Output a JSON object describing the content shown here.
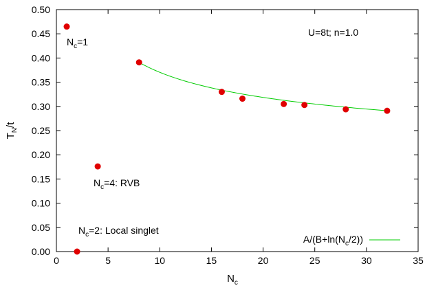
{
  "chart_data": {
    "type": "scatter",
    "title": "",
    "xlabel": "N",
    "xlabel_sub": "c",
    "ylabel": "T",
    "ylabel_sub": "N",
    "ylabel_suffix": "/t",
    "xlim": [
      0,
      35
    ],
    "ylim": [
      0.0,
      0.5
    ],
    "xticks": [
      0,
      5,
      10,
      15,
      20,
      25,
      30,
      35
    ],
    "yticks": [
      "0.00",
      "0.05",
      "0.10",
      "0.15",
      "0.20",
      "0.25",
      "0.30",
      "0.35",
      "0.40",
      "0.45",
      "0.50"
    ],
    "grid": false,
    "series": [
      {
        "kind": "points",
        "color": "#e00000",
        "x": [
          1,
          2,
          4,
          8,
          16,
          18,
          22,
          24,
          28,
          32
        ],
        "y": [
          0.465,
          0.0,
          0.176,
          0.391,
          0.33,
          0.316,
          0.305,
          0.303,
          0.294,
          0.291
        ]
      },
      {
        "kind": "fit-line",
        "name": "A/(B+ln(N_c/2))",
        "legend_label": "A/(B+ln(N",
        "legend_sub": "c",
        "legend_suffix": "/2))",
        "color": "#00cc00",
        "function": "A/(B+ln(N_c/2))",
        "x_range": [
          8,
          32
        ]
      }
    ],
    "annotations": {
      "model": "U=8t; n=1.0",
      "nc1": {
        "prefix": "N",
        "sub": "c",
        "suffix": "=1"
      },
      "nc4": {
        "prefix": "N",
        "sub": "c",
        "suffix": "=4: RVB"
      },
      "nc2": {
        "prefix": "N",
        "sub": "c",
        "suffix": "=2: Local singlet"
      }
    },
    "legend_position": "bottom-right"
  }
}
